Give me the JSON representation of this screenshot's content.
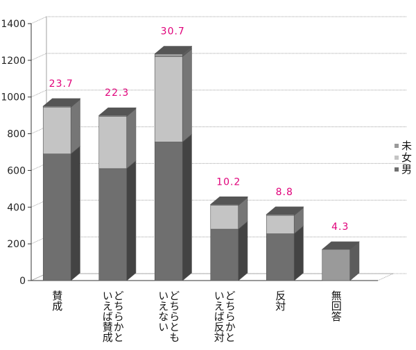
{
  "chart_data": {
    "type": "bar",
    "stacked": true,
    "three_d": true,
    "categories": [
      "賛成",
      "どちらかといえば賛成",
      "どちらともいえない",
      "どちらかといえば反対",
      "反対",
      "無回答"
    ],
    "category_label_lines": [
      [
        "賛成"
      ],
      [
        "どちらかと",
        "いえば賛成"
      ],
      [
        "どちらとも",
        "いえない"
      ],
      [
        "どちらかと",
        "いえば反対"
      ],
      [
        "反対"
      ],
      [
        "無回答"
      ]
    ],
    "series": [
      {
        "name": "男",
        "values": [
          690,
          610,
          755,
          280,
          255,
          0
        ]
      },
      {
        "name": "女",
        "values": [
          255,
          285,
          465,
          130,
          100,
          0
        ]
      },
      {
        "name": "未",
        "values": [
          5,
          5,
          15,
          5,
          5,
          170
        ]
      }
    ],
    "percent_labels": [
      "23.7",
      "22.3",
      "30.7",
      "10.2",
      "8.8",
      "4.3"
    ],
    "yticks": [
      0,
      200,
      400,
      600,
      800,
      1000,
      1200,
      1400
    ],
    "ylim": [
      0,
      1400
    ],
    "grid": true,
    "legend": "right",
    "colors": {
      "男": "#6f6f6f",
      "女": "#c4c4c4",
      "未": "#9a9a9a",
      "percent_label": "#e0007a",
      "grid": "#a0a0a0",
      "axis": "#333333"
    }
  }
}
